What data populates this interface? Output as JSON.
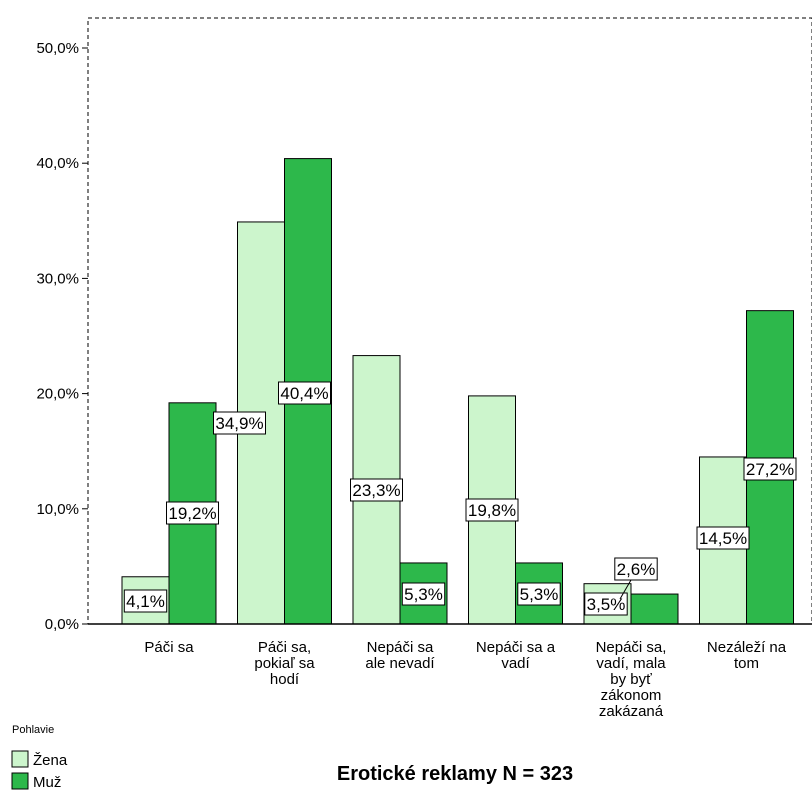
{
  "chart_data": {
    "type": "bar",
    "xlabel": "Erotické reklamy N = 323",
    "ylabel": "",
    "ylim": [
      0,
      53
    ],
    "y_ticks": [
      "0,0%",
      "10,0%",
      "20,0%",
      "30,0%",
      "40,0%",
      "50,0%"
    ],
    "categories": [
      [
        "Páči sa"
      ],
      [
        "Páči sa,",
        "pokiaľ sa",
        "hodí"
      ],
      [
        "Nepáči sa",
        "ale nevadí"
      ],
      [
        "Nepáči sa a",
        "vadí"
      ],
      [
        "Nepáči sa,",
        "vadí, mala",
        "by byť",
        "zákonom",
        "zakázaná"
      ],
      [
        "Nezáleží na",
        "tom"
      ]
    ],
    "series": [
      {
        "name": "Žena",
        "color": "#ccf5cc",
        "values": [
          4.1,
          34.9,
          23.3,
          19.8,
          3.5,
          14.5
        ],
        "labels": [
          "4,1%",
          "34,9%",
          "23,3%",
          "19,8%",
          "3,5%",
          "14,5%"
        ]
      },
      {
        "name": "Muž",
        "color": "#2db84b",
        "values": [
          19.2,
          40.4,
          5.3,
          5.3,
          2.6,
          27.2
        ],
        "labels": [
          "19,2%",
          "40,4%",
          "5,3%",
          "5,3%",
          "2,6%",
          "27,2%"
        ]
      }
    ],
    "legend": {
      "title": "Pohlavie",
      "position": "bottom-left"
    },
    "grid": false
  }
}
